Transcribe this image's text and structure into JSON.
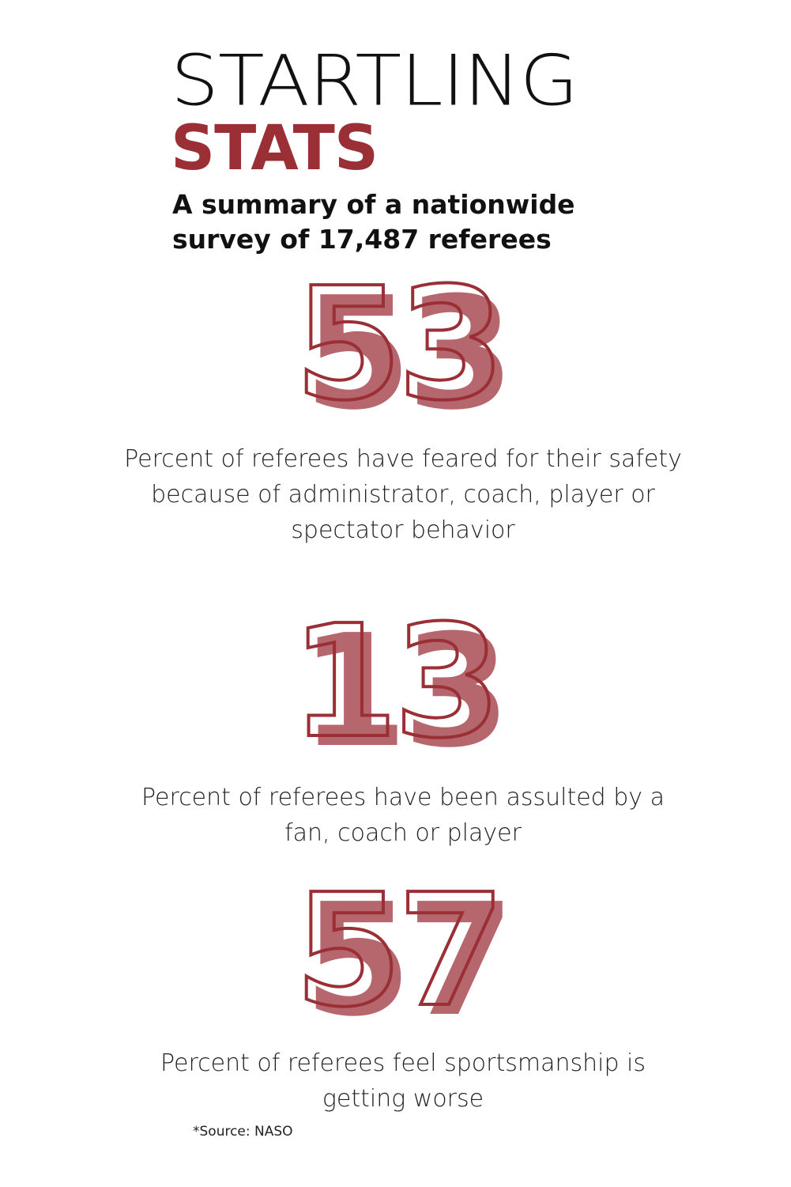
{
  "colors": {
    "accent": "#9a2f36",
    "number_fill": "#b5676d",
    "text": "#111111",
    "background": "#ffffff"
  },
  "title": {
    "line1": "STARTLING",
    "line2": "STATS"
  },
  "subtitle": "A summary of a nationwide survey of 17,487 referees",
  "stats": [
    {
      "number": "53",
      "description": "Percent of referees have feared for their safety because of administrator, coach, player or spectator behavior"
    },
    {
      "number": "13",
      "description": "Percent of referees have been assulted by a fan, coach or player"
    },
    {
      "number": "57",
      "description": "Percent of referees feel sportsmanship is getting worse"
    }
  ],
  "source": "*Source: NASO"
}
